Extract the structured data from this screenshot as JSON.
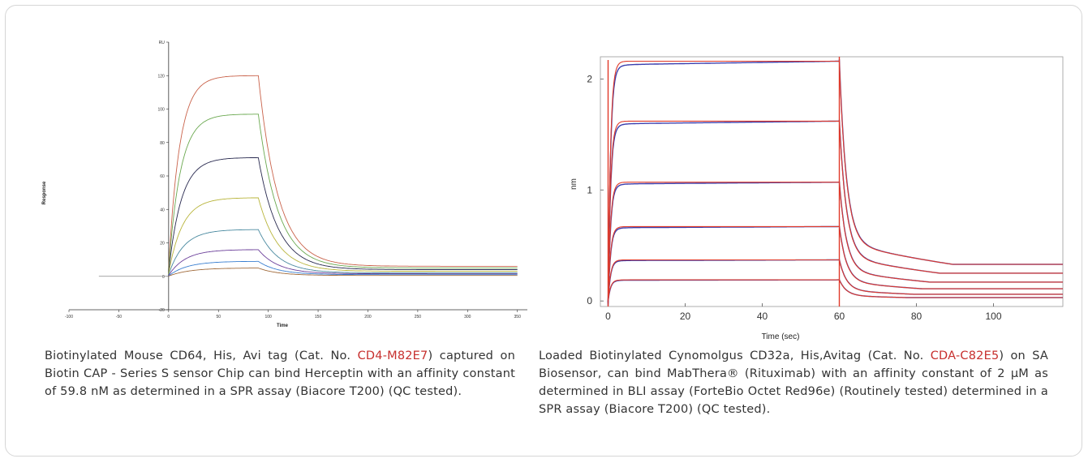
{
  "left_chart": {
    "chart_data": {
      "type": "line",
      "title": "",
      "xlabel": "Time",
      "ylabel": "Response",
      "y_unit": "RU",
      "xlim": [
        -100,
        360
      ],
      "ylim": [
        -20,
        140
      ],
      "x_ticks": [
        "-100",
        "-50",
        "0",
        "50",
        "100",
        "150",
        "200",
        "250",
        "300",
        "350",
        "s"
      ],
      "y_ticks": [
        "-20",
        "0",
        "20",
        "40",
        "60",
        "80",
        "100",
        "120",
        "RU"
      ],
      "association": {
        "start": 0,
        "end": 90
      },
      "series": [
        {
          "plateau": 120,
          "residual": 6
        },
        {
          "plateau": 97,
          "residual": 5
        },
        {
          "plateau": 71,
          "residual": 4
        },
        {
          "plateau": 47,
          "residual": 3
        },
        {
          "plateau": 28,
          "residual": 2
        },
        {
          "plateau": 16,
          "residual": 1.5
        },
        {
          "plateau": 9,
          "residual": 1
        },
        {
          "plateau": 5,
          "residual": 0.5
        }
      ],
      "colors": [
        "#c9624a",
        "#6aa84f",
        "#27284e",
        "#b8b43a",
        "#4a8aa0",
        "#6b3f9a",
        "#3a7fd0",
        "#a06a3a"
      ]
    }
  },
  "right_chart": {
    "chart_data": {
      "type": "line",
      "title": "",
      "xlabel": "Time (sec)",
      "ylabel": "nm",
      "xlim": [
        -2,
        118
      ],
      "ylim": [
        -0.05,
        2.2
      ],
      "x_ticks": [
        0,
        20,
        40,
        60,
        80,
        100
      ],
      "y_ticks": [
        0,
        1,
        2
      ],
      "association": {
        "start": 0,
        "end": 60
      },
      "series": [
        {
          "plateau": 2.16,
          "residual": 0.33
        },
        {
          "plateau": 1.62,
          "residual": 0.25
        },
        {
          "plateau": 1.07,
          "residual": 0.17
        },
        {
          "plateau": 0.67,
          "residual": 0.11
        },
        {
          "plateau": 0.37,
          "residual": 0.06
        },
        {
          "plateau": 0.19,
          "residual": 0.03
        }
      ],
      "raw_color": "#3b3fae",
      "fit_color": "#e03a2a"
    }
  },
  "captions": {
    "left": {
      "pre": "Biotinylated Mouse CD64, His, Avi tag (Cat. No. ",
      "cat": "CD4-M82E7",
      "post": ") captured on Biotin CAP - Series S sensor Chip can bind Herceptin with an affinity constant of 59.8 nM as determined in a SPR assay (Biacore T200) (QC tested)."
    },
    "right": {
      "pre": "Loaded Biotinylated Cynomolgus CD32a, His,Avitag (Cat. No. ",
      "cat": "CDA-C82E5",
      "post": ") on SA Biosensor, can bind MabThera® (Rituximab) with an affinity constant of 2 μM as determined in BLI assay (ForteBio Octet Red96e) (Routinely tested) determined in a SPR assay (Biacore T200) (QC tested)."
    }
  }
}
